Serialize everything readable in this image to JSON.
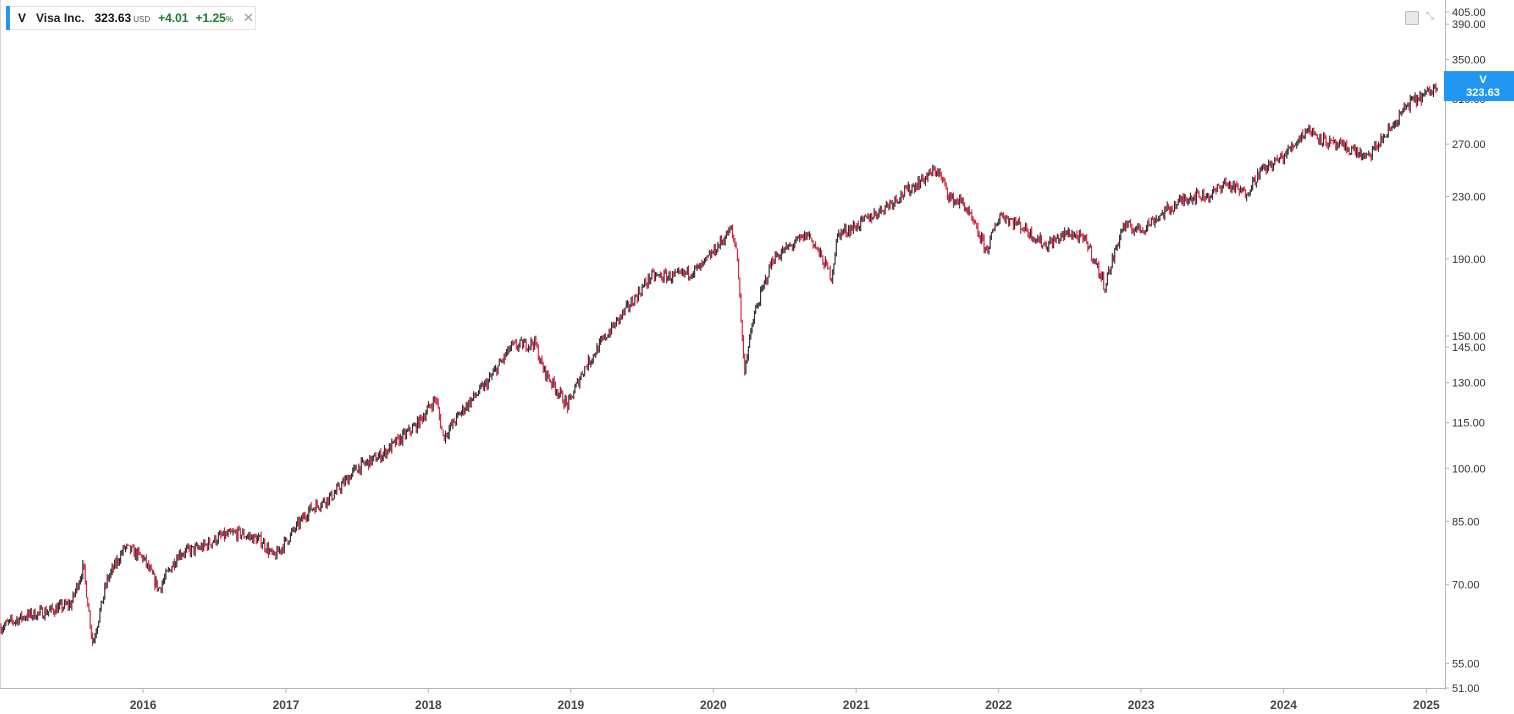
{
  "header": {
    "symbol": "V",
    "company": "Visa Inc.",
    "price": "323.63",
    "currency": "USD",
    "change": "+4.01",
    "change_pct": "+1.25",
    "pct_unit": "%"
  },
  "price_badge": {
    "symbol": "V",
    "value": "323.63"
  },
  "colors": {
    "accent": "#2196f3",
    "candle_down": "#d81b3c",
    "candle_up": "#2a2a2a",
    "positive_text": "#1b7b2f",
    "axis_text": "#333333",
    "axis_line": "#b5b5b5"
  },
  "icons": [
    "download-icon",
    "collapse-icon",
    "close-icon"
  ],
  "chart_data": {
    "type": "line",
    "title": "",
    "xlabel": "",
    "ylabel": "",
    "y_scale": "log",
    "ylim": [
      51,
      420
    ],
    "xlim": [
      "2015-01-02",
      "2025-02-10"
    ],
    "grid": false,
    "x_ticks": [
      "2016",
      "2017",
      "2018",
      "2019",
      "2020",
      "2021",
      "2022",
      "2023",
      "2024",
      "2025"
    ],
    "y_ticks": [
      51,
      55,
      70,
      85,
      100,
      115,
      130,
      145,
      150,
      190,
      230,
      270,
      310,
      350,
      390,
      405
    ],
    "y_tick_labels": [
      "51.00",
      "55.00",
      "70.00",
      "85.00",
      "100.00",
      "115.00",
      "130.00",
      "145.00",
      "150.00",
      "190.00",
      "230.00",
      "270.00",
      "310.00",
      "350.00",
      "390.00",
      "405.00"
    ],
    "series": [
      {
        "x": [
          "2015-01-02",
          "2015-03-01",
          "2015-05-01",
          "2015-07-01",
          "2015-08-01",
          "2015-08-25",
          "2015-10-01",
          "2015-11-15",
          "2016-01-01",
          "2016-02-10",
          "2016-04-01",
          "2016-06-01",
          "2016-07-15",
          "2016-09-01",
          "2016-11-01",
          "2016-12-01",
          "2017-03-01",
          "2017-05-01",
          "2017-07-01",
          "2017-09-01",
          "2017-12-01",
          "2018-01-20",
          "2018-02-08",
          "2018-04-01",
          "2018-06-01",
          "2018-08-01",
          "2018-10-01",
          "2018-10-20",
          "2018-12-24",
          "2019-02-01",
          "2019-04-01",
          "2019-06-01",
          "2019-07-25",
          "2019-10-01",
          "2019-12-01",
          "2020-02-15",
          "2020-03-02",
          "2020-03-20",
          "2020-04-15",
          "2020-06-01",
          "2020-08-01",
          "2020-09-01",
          "2020-10-30",
          "2020-11-15",
          "2021-01-01",
          "2021-03-01",
          "2021-05-01",
          "2021-07-27",
          "2021-09-01",
          "2021-10-01",
          "2021-12-01",
          "2022-01-05",
          "2022-03-01",
          "2022-05-01",
          "2022-07-01",
          "2022-08-15",
          "2022-09-30",
          "2022-11-15",
          "2023-01-01",
          "2023-03-01",
          "2023-05-01",
          "2023-07-01",
          "2023-08-01",
          "2023-09-25",
          "2023-11-01",
          "2024-01-01",
          "2024-03-01",
          "2024-05-01",
          "2024-07-01",
          "2024-08-01",
          "2024-10-01",
          "2024-11-15",
          "2025-01-01",
          "2025-01-31"
        ],
        "values": [
          61.5,
          63.5,
          64.5,
          66,
          74,
          58.5,
          71,
          78.5,
          76,
          69,
          77,
          78.5,
          81,
          82,
          80,
          76,
          88,
          92,
          100,
          104,
          114,
          124,
          110,
          120,
          130,
          145,
          147,
          136,
          121,
          135,
          150,
          165,
          180,
          180,
          185,
          208,
          194,
          135,
          160,
          190,
          200,
          205,
          180,
          205,
          210,
          220,
          232,
          250,
          228,
          226,
          195,
          218,
          210,
          198,
          206,
          200,
          175,
          210,
          208,
          219,
          230,
          231,
          240,
          232,
          248,
          260,
          283,
          270,
          265,
          258,
          283,
          305,
          315,
          323
        ]
      }
    ]
  }
}
